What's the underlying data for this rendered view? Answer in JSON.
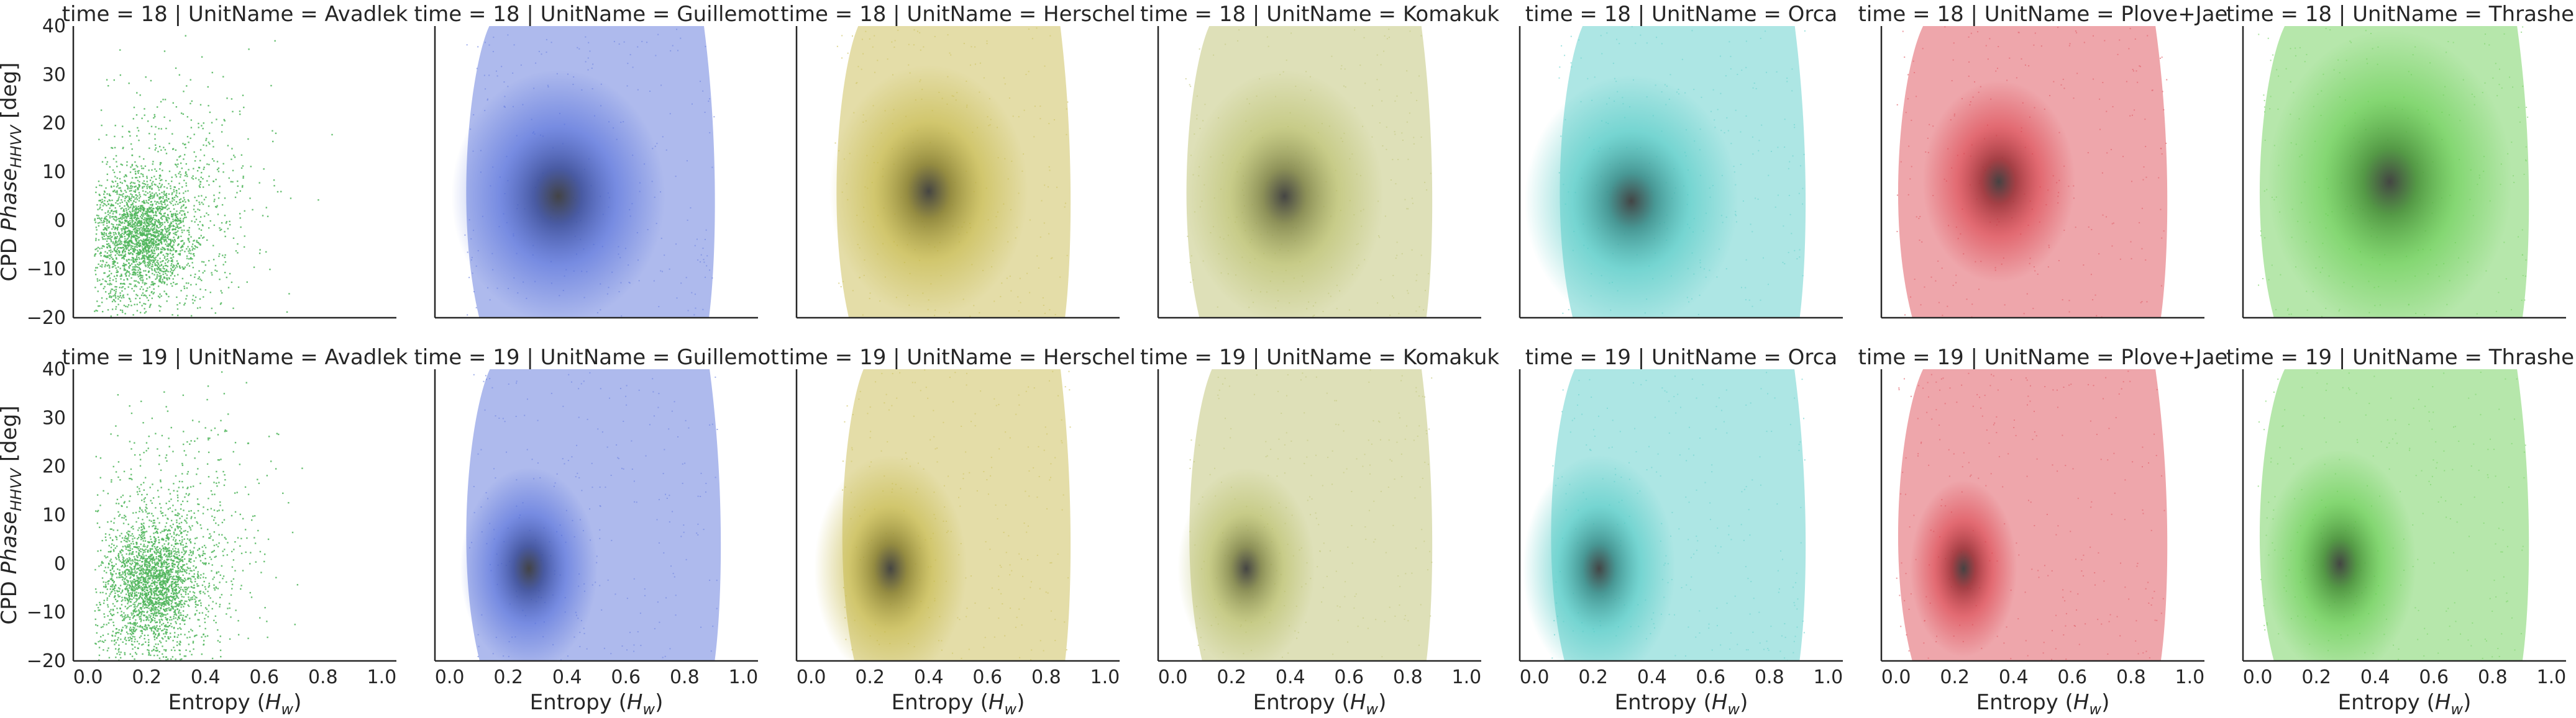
{
  "chart_data": {
    "type": "facet_grid_density_scatter",
    "row_facet": "time",
    "col_facet": "UnitName",
    "rows": [
      18,
      19
    ],
    "columns": [
      "Avadlek",
      "Guillemot",
      "Herschel",
      "Komakuk",
      "Orca",
      "Plove+Jae",
      "Thrasher"
    ],
    "title_template": "time = {row} | UnitName = {col}",
    "xlabel": "Entropy ($H_w$)",
    "ylabel": "CPD $Phase_{HHVV}$ [deg]",
    "xlim": [
      -0.05,
      1.05
    ],
    "ylim": [
      -20,
      40
    ],
    "xticks": [
      "0.0",
      "0.2",
      "0.4",
      "0.6",
      "0.8",
      "1.0"
    ],
    "yticks": [
      "−20",
      "−10",
      "0",
      "10",
      "20",
      "30",
      "40"
    ],
    "grid": false,
    "colors": {
      "Avadlek": "#4fb55a",
      "Guillemot": "#4a66d8",
      "Herschel": "#c2b43e",
      "Komakuk": "#b5bb62",
      "Orca": "#48c7c2",
      "Plove+Jae": "#d93a44",
      "Thrasher": "#5cca45"
    },
    "panels": [
      {
        "time": 18,
        "unit": "Avadlek",
        "style": "scatter",
        "center": [
          0.18,
          -3
        ],
        "spread": [
          0.13,
          9
        ],
        "x_range": [
          0.02,
          0.85
        ],
        "y_range": [
          -20,
          40
        ]
      },
      {
        "time": 18,
        "unit": "Guillemot",
        "style": "density",
        "center": [
          0.37,
          5
        ],
        "spread": [
          0.14,
          10
        ],
        "x_range": [
          0.05,
          0.9
        ],
        "y_range": [
          -20,
          40
        ]
      },
      {
        "time": 18,
        "unit": "Herschel",
        "style": "density",
        "center": [
          0.4,
          6
        ],
        "spread": [
          0.13,
          10
        ],
        "x_range": [
          0.08,
          0.88
        ],
        "y_range": [
          -20,
          40
        ]
      },
      {
        "time": 18,
        "unit": "Komakuk",
        "style": "density",
        "center": [
          0.38,
          5
        ],
        "spread": [
          0.13,
          10
        ],
        "x_range": [
          0.04,
          0.88
        ],
        "y_range": [
          -20,
          40
        ]
      },
      {
        "time": 18,
        "unit": "Orca",
        "style": "density",
        "center": [
          0.33,
          4
        ],
        "spread": [
          0.14,
          10
        ],
        "x_range": [
          0.08,
          0.92
        ],
        "y_range": [
          -20,
          40
        ]
      },
      {
        "time": 18,
        "unit": "Plove+Jae",
        "style": "density",
        "center": [
          0.35,
          8
        ],
        "spread": [
          0.1,
          8
        ],
        "x_range": [
          0.0,
          0.92
        ],
        "y_range": [
          -20,
          40
        ]
      },
      {
        "time": 18,
        "unit": "Thrasher",
        "style": "density",
        "center": [
          0.45,
          8
        ],
        "spread": [
          0.16,
          12
        ],
        "x_range": [
          0.0,
          0.92
        ],
        "y_range": [
          -20,
          40
        ]
      },
      {
        "time": 19,
        "unit": "Avadlek",
        "style": "scatter",
        "center": [
          0.22,
          -4
        ],
        "spread": [
          0.12,
          10
        ],
        "x_range": [
          0.02,
          0.8
        ],
        "y_range": [
          -20,
          40
        ]
      },
      {
        "time": 19,
        "unit": "Guillemot",
        "style": "density",
        "center": [
          0.27,
          -1
        ],
        "spread": [
          0.09,
          8
        ],
        "x_range": [
          0.05,
          0.92
        ],
        "y_range": [
          -20,
          40
        ]
      },
      {
        "time": 19,
        "unit": "Herschel",
        "style": "density",
        "center": [
          0.27,
          -1
        ],
        "spread": [
          0.1,
          9
        ],
        "x_range": [
          0.1,
          0.88
        ],
        "y_range": [
          -20,
          40
        ]
      },
      {
        "time": 19,
        "unit": "Komakuk",
        "style": "density",
        "center": [
          0.25,
          -1
        ],
        "spread": [
          0.09,
          8
        ],
        "x_range": [
          0.05,
          0.88
        ],
        "y_range": [
          -20,
          40
        ]
      },
      {
        "time": 19,
        "unit": "Orca",
        "style": "density",
        "center": [
          0.22,
          -1
        ],
        "spread": [
          0.1,
          9
        ],
        "x_range": [
          0.05,
          0.92
        ],
        "y_range": [
          -20,
          40
        ]
      },
      {
        "time": 19,
        "unit": "Plove+Jae",
        "style": "density",
        "center": [
          0.23,
          -1
        ],
        "spread": [
          0.07,
          7
        ],
        "x_range": [
          0.0,
          0.92
        ],
        "y_range": [
          -20,
          40
        ]
      },
      {
        "time": 19,
        "unit": "Thrasher",
        "style": "density",
        "center": [
          0.28,
          0
        ],
        "spread": [
          0.1,
          9
        ],
        "x_range": [
          0.0,
          0.92
        ],
        "y_range": [
          -20,
          40
        ]
      }
    ]
  }
}
